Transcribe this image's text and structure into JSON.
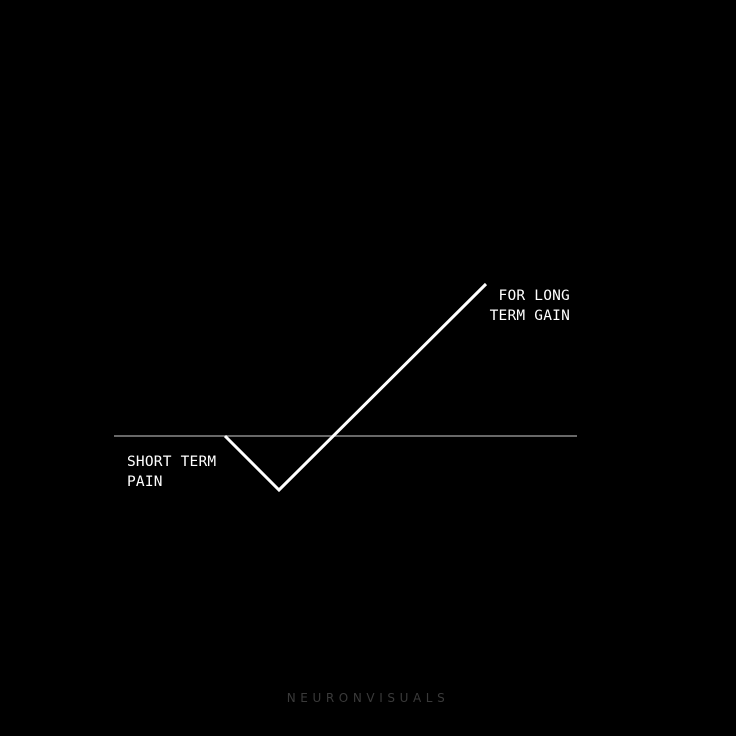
{
  "colors": {
    "background": "#000000",
    "baseline": "#8a8a8a",
    "curve": "#ffffff",
    "text": "#ffffff",
    "watermark": "#3a3a3a"
  },
  "labels": {
    "short_term": [
      "SHORT TERM",
      "PAIN"
    ],
    "long_term": [
      "FOR LONG",
      "TERM GAIN"
    ]
  },
  "watermark": "NEURONVISUALS"
}
